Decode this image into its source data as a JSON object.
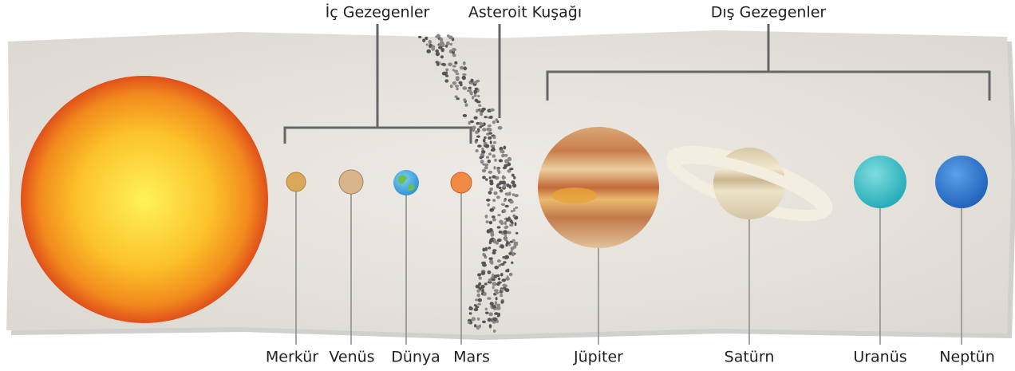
{
  "groups": [
    {
      "label": "İç Gezegenler"
    },
    {
      "label": "Asteroit Kuşağı"
    },
    {
      "label": "Dış Gezegenler"
    }
  ],
  "planets": [
    {
      "label": "Merkür"
    },
    {
      "label": "Venüs"
    },
    {
      "label": "Dünya"
    },
    {
      "label": "Mars"
    },
    {
      "label": "Jüpiter"
    },
    {
      "label": "Satürn"
    },
    {
      "label": "Uranüs"
    },
    {
      "label": "Neptün"
    }
  ]
}
